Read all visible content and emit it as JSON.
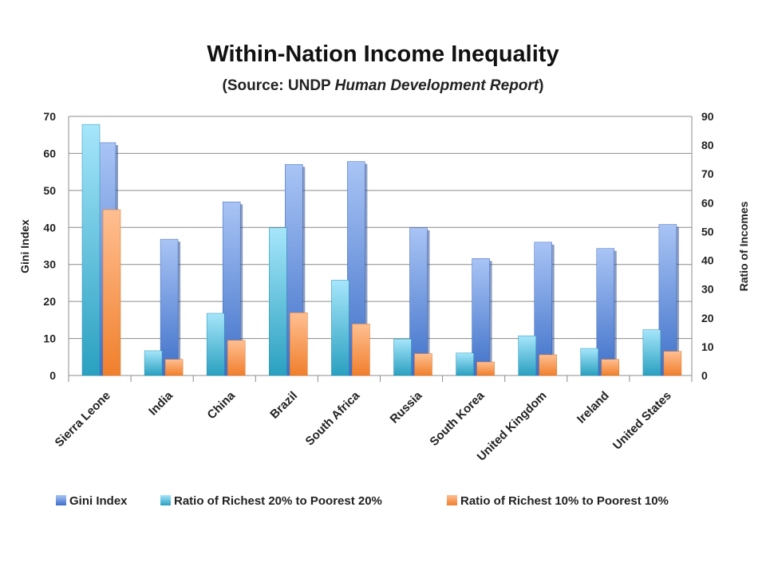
{
  "title": "Within-Nation Income Inequality",
  "subtitle": {
    "prefix": "(Source: UNDP ",
    "italic": "Human Development Report",
    "suffix": ")"
  },
  "colors": {
    "gini": "#4f7fd6",
    "ratio20": "#3ab0d0",
    "ratio10": "#f58b3c",
    "grid": "#8c8c8c"
  },
  "chart_data": {
    "type": "bar",
    "categories": [
      "Sierra Leone",
      "India",
      "China",
      "Brazil",
      "South Africa",
      "Russia",
      "South Korea",
      "United Kingdom",
      "Ireland",
      "United States"
    ],
    "series": [
      {
        "name": "Gini Index",
        "axis": "left",
        "values": [
          62.9,
          36.8,
          46.9,
          57.0,
          57.8,
          39.9,
          31.6,
          36.0,
          34.3,
          40.8
        ]
      },
      {
        "name": "Ratio of Richest 20% to Poorest 20%",
        "axis": "right",
        "values": [
          87.2,
          8.6,
          21.6,
          51.3,
          33.1,
          12.7,
          7.8,
          13.8,
          9.4,
          15.9
        ]
      },
      {
        "name": "Ratio of Richest 10% to Poorest 10%",
        "axis": "right",
        "values": [
          57.6,
          5.6,
          12.2,
          21.8,
          17.9,
          7.6,
          4.7,
          7.2,
          5.6,
          8.4
        ]
      }
    ],
    "ylabel": "Gini Index",
    "y2label": "Ratio of Incomes",
    "ylim": [
      0,
      70
    ],
    "y2lim": [
      0,
      90
    ],
    "yticks": [
      0,
      10,
      20,
      30,
      40,
      50,
      60,
      70
    ],
    "y2ticks": [
      0,
      10,
      20,
      30,
      40,
      50,
      60,
      70,
      80,
      90
    ],
    "grid": true,
    "legend_position": "bottom"
  }
}
